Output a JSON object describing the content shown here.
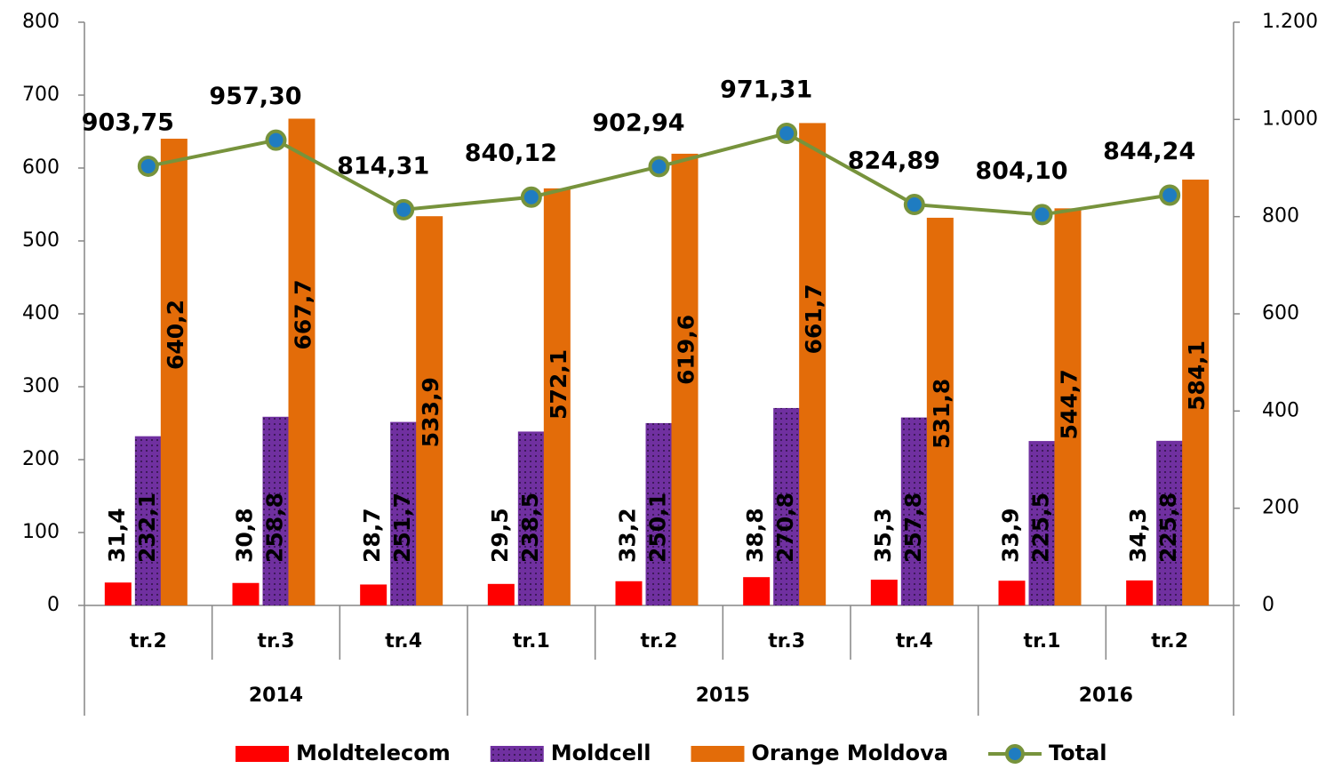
{
  "chart_data": {
    "type": "bar_line",
    "categories": [
      "tr.2",
      "tr.3",
      "tr.4",
      "tr.1",
      "tr.2",
      "tr.3",
      "tr.4",
      "tr.1",
      "tr.2"
    ],
    "x_groups": [
      {
        "label": "2014",
        "count": 3
      },
      {
        "label": "2015",
        "count": 4
      },
      {
        "label": "2016",
        "count": 2
      }
    ],
    "series": [
      {
        "name": "Moldtelecom",
        "type": "bar",
        "color": "#ff0000",
        "label_color": "#000000",
        "values": [
          31.4,
          30.8,
          28.7,
          29.5,
          33.2,
          38.8,
          35.3,
          33.9,
          34.3
        ],
        "value_labels": [
          "31,4",
          "30,8",
          "28,7",
          "29,5",
          "33,2",
          "38,8",
          "35,3",
          "33,9",
          "34,3"
        ]
      },
      {
        "name": "Moldcell",
        "type": "bar",
        "color": "#7030a0",
        "label_color": "#ffffff",
        "pattern": "dots",
        "values": [
          232.1,
          258.8,
          251.7,
          238.5,
          250.1,
          270.8,
          257.8,
          225.5,
          225.8
        ],
        "value_labels": [
          "232,1",
          "258,8",
          "251,7",
          "238,5",
          "250,1",
          "270,8",
          "257,8",
          "225,5",
          "225,8"
        ]
      },
      {
        "name": "Orange Moldova",
        "type": "bar",
        "color": "#e36c09",
        "label_color": "#000000",
        "values": [
          640.2,
          667.7,
          533.9,
          572.1,
          619.6,
          661.7,
          531.8,
          544.7,
          584.1
        ],
        "value_labels": [
          "640,2",
          "667,7",
          "533,9",
          "572,1",
          "619,6",
          "661,7",
          "531,8",
          "544,7",
          "584,1"
        ]
      },
      {
        "name": "Total",
        "type": "line",
        "axis": "y2",
        "color": "#77933c",
        "marker_color": "#1f7cc1",
        "values": [
          903.75,
          957.3,
          814.31,
          840.12,
          902.94,
          971.31,
          824.89,
          804.1,
          844.24
        ],
        "value_labels": [
          "903,75",
          "957,30",
          "814,31",
          "840,12",
          "902,94",
          "971,31",
          "824,89",
          "804,10",
          "844,24"
        ]
      }
    ],
    "ylim": [
      0,
      800
    ],
    "yticks": [
      0,
      100,
      200,
      300,
      400,
      500,
      600,
      700,
      800
    ],
    "y2lim": [
      0,
      1200
    ],
    "y2ticks": [
      0,
      200,
      400,
      600,
      800,
      {
        "value": 1000,
        "label": "1.000"
      },
      {
        "value": 1200,
        "label": "1.200"
      }
    ],
    "grid": false,
    "legend": "bottom"
  }
}
